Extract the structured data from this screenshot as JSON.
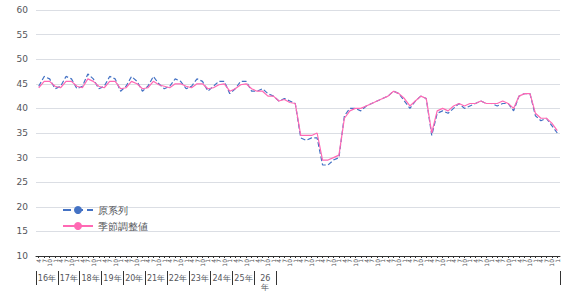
{
  "chart_data": {
    "type": "line",
    "categories": [
      "4",
      "7",
      "10",
      "1",
      "4",
      "7",
      "10",
      "1",
      "4",
      "7",
      "10",
      "1",
      "4",
      "7",
      "10",
      "1",
      "4",
      "7",
      "10",
      "1",
      "4",
      "7",
      "10",
      "1",
      "4",
      "7",
      "10",
      "1",
      "4",
      "7",
      "10",
      "1",
      "4",
      "7",
      "10",
      "1",
      "4",
      "7",
      "10",
      "1",
      "4",
      "7",
      "10",
      "1",
      "4",
      "7",
      "10",
      "1",
      "4",
      "7",
      "10",
      "1",
      "4",
      "7",
      "10",
      "1",
      "4",
      "7",
      "10",
      "1",
      "4",
      "7",
      "10",
      "1",
      "4",
      "7",
      "10",
      "1",
      "4",
      "7",
      "10",
      "1",
      "4",
      "7",
      "10",
      "1",
      "4",
      "7",
      "10",
      "1",
      "4",
      "7",
      "10",
      "1",
      "4",
      "7",
      "10",
      "1",
      "4",
      "7",
      "10",
      "1",
      "4",
      "7",
      "10",
      "1"
    ],
    "series": [
      {
        "name": "原系列",
        "color": "#4472c4",
        "line_style": "dashed",
        "values": [
          44.5,
          46.5,
          46.0,
          44.0,
          44.5,
          46.5,
          46.0,
          44.0,
          44.5,
          47.0,
          46.0,
          44.0,
          44.5,
          46.5,
          46.0,
          43.5,
          44.5,
          46.5,
          45.5,
          43.5,
          44.5,
          46.5,
          45.0,
          44.0,
          44.5,
          46.0,
          45.5,
          44.0,
          44.5,
          46.0,
          45.5,
          43.5,
          44.5,
          45.5,
          45.5,
          43.0,
          44.0,
          45.5,
          45.5,
          43.5,
          43.5,
          44.0,
          43.0,
          42.5,
          41.5,
          42.0,
          41.5,
          41.0,
          34.0,
          33.5,
          34.0,
          34.0,
          28.5,
          28.5,
          29.5,
          30.0,
          38.5,
          40.0,
          40.0,
          39.5,
          40.5,
          41.0,
          41.5,
          42.0,
          42.5,
          43.5,
          43.0,
          41.5,
          40.0,
          41.5,
          42.5,
          42.0,
          34.5,
          39.0,
          39.5,
          39.0,
          40.0,
          41.0,
          40.0,
          40.5,
          41.0,
          41.5,
          41.0,
          41.0,
          40.5,
          41.0,
          41.0,
          39.5,
          42.5,
          43.0,
          43.0,
          38.5,
          37.5,
          38.0,
          36.5,
          35.0
        ]
      },
      {
        "name": "季節調整値",
        "color": "#ff69b4",
        "line_style": "solid",
        "values": [
          44.2,
          45.5,
          45.5,
          44.5,
          44.2,
          45.5,
          45.5,
          44.5,
          44.2,
          46.0,
          45.5,
          44.5,
          44.2,
          45.5,
          45.5,
          44.0,
          44.2,
          45.5,
          45.0,
          44.0,
          44.2,
          45.5,
          44.8,
          44.5,
          44.2,
          45.0,
          45.0,
          44.5,
          44.2,
          45.0,
          45.0,
          44.0,
          44.2,
          44.8,
          45.0,
          43.5,
          44.0,
          44.8,
          45.0,
          44.0,
          43.5,
          43.5,
          42.5,
          42.5,
          41.5,
          41.8,
          41.2,
          41.0,
          34.5,
          34.5,
          34.5,
          35.0,
          29.5,
          29.5,
          30.0,
          30.5,
          38.0,
          39.5,
          40.0,
          40.0,
          40.5,
          41.0,
          41.5,
          42.0,
          42.5,
          43.5,
          43.0,
          42.0,
          40.5,
          41.5,
          42.5,
          42.0,
          35.0,
          39.5,
          40.0,
          39.5,
          40.5,
          41.0,
          40.5,
          41.0,
          41.0,
          41.5,
          41.0,
          41.0,
          41.0,
          41.5,
          41.0,
          40.0,
          42.5,
          43.0,
          43.0,
          39.0,
          38.0,
          38.0,
          37.0,
          35.5
        ]
      }
    ],
    "annotations": [
      "16年",
      "17年",
      "18年",
      "19年",
      "20年",
      "21年",
      "22年",
      "23年",
      "24年",
      "25年",
      "26\n年"
    ],
    "ylim": [
      10,
      60
    ],
    "yticks": [
      10,
      15,
      20,
      25,
      30,
      35,
      40,
      45,
      50,
      55,
      60
    ],
    "grid": true,
    "legend": "lower left"
  }
}
